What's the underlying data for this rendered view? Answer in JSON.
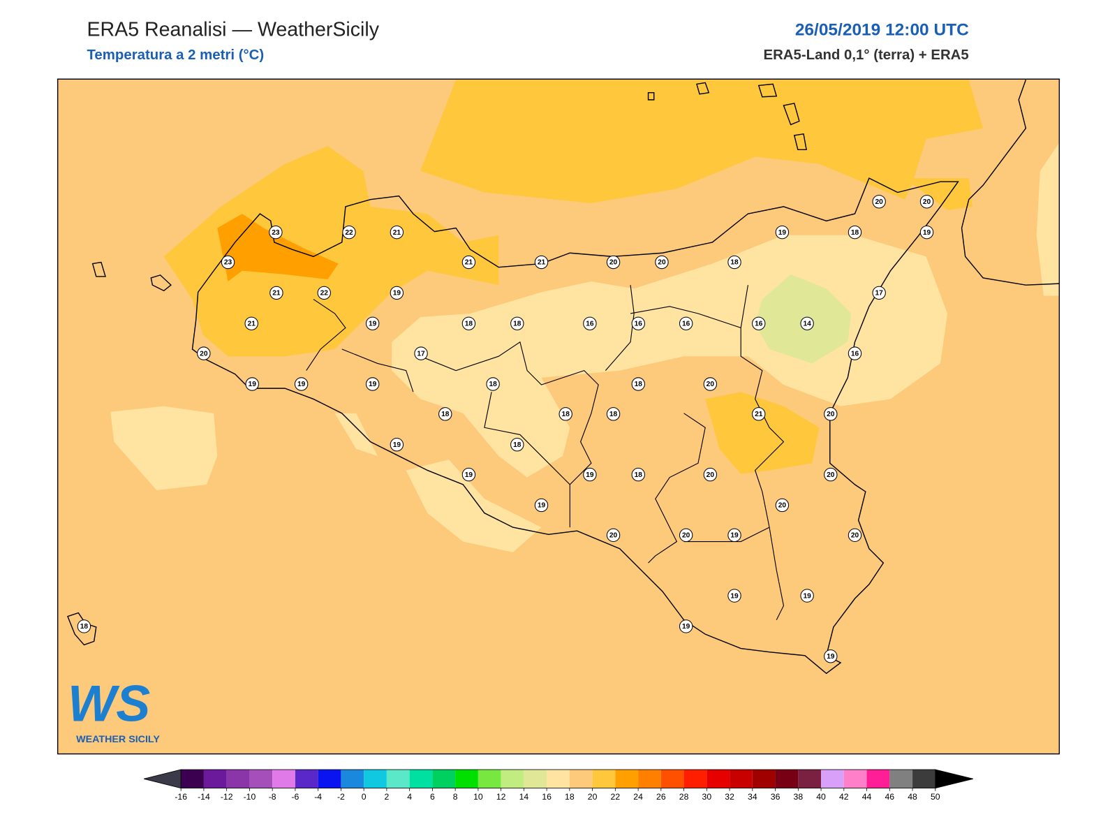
{
  "header": {
    "title": "ERA5 Reanalisi — WeatherSicily",
    "subtitle": "Temperatura a 2 metri (°C)",
    "date": "26/05/2019 12:00 UTC",
    "source": "ERA5-Land 0,1° (terra) + ERA5"
  },
  "stations": [
    23,
    22,
    21,
    23,
    21,
    22,
    19,
    21,
    19,
    20,
    19,
    19,
    19,
    17,
    21,
    21,
    20,
    20,
    18,
    19,
    18,
    20,
    20,
    19,
    17,
    18,
    18,
    16,
    16,
    16,
    16,
    14,
    16,
    18,
    18,
    20,
    18,
    18,
    18,
    21,
    20,
    19,
    18,
    19,
    19,
    18,
    20,
    20,
    19,
    20,
    20,
    20,
    19,
    20,
    19,
    19,
    19,
    19,
    18
  ],
  "colorbar": {
    "ticks": [
      -16,
      -14,
      -12,
      -10,
      -8,
      -6,
      -4,
      -2,
      0,
      2,
      4,
      6,
      8,
      10,
      12,
      14,
      16,
      18,
      20,
      22,
      24,
      26,
      28,
      30,
      32,
      34,
      36,
      38,
      40,
      42,
      44,
      46,
      48,
      50
    ],
    "colors": [
      "#3c0050",
      "#6a1a9a",
      "#8a35a8",
      "#a54fba",
      "#e07ae8",
      "#5a28c8",
      "#0a14f0",
      "#1a88dc",
      "#10c8e0",
      "#5ae8c8",
      "#00e0a0",
      "#00d060",
      "#00e000",
      "#78e840",
      "#c0ec80",
      "#e0e898",
      "#ffe3a0",
      "#fdc97a",
      "#ffc83c",
      "#ffa000",
      "#ff8000",
      "#ff5000",
      "#ff1e00",
      "#e60000",
      "#c80000",
      "#a00000",
      "#780014",
      "#7a2040",
      "#d8a0f8",
      "#ff80c8",
      "#ff1e96",
      "#808080",
      "#3c3c3c"
    ],
    "under_color": "#3a3a48",
    "over_color": "#000000"
  },
  "logo": {
    "mark": "WS",
    "text": "WEATHER SICILY"
  }
}
